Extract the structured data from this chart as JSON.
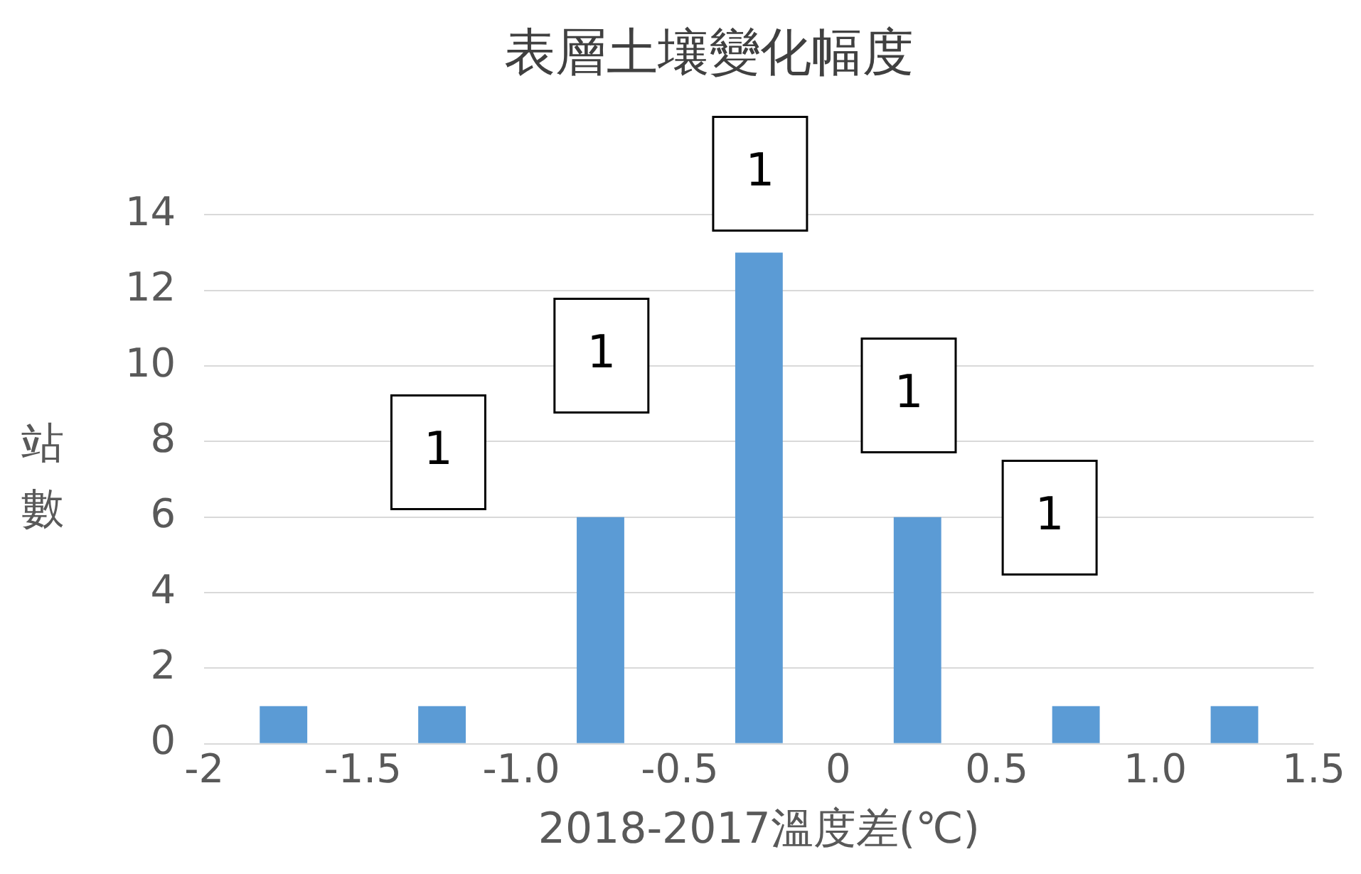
{
  "chart_data": {
    "type": "histogram",
    "title": "表層土壤變化幅度",
    "xlabel": "2018-2017溫度差(℃)",
    "ylabel": "站數",
    "bins": [
      -2,
      -1.5,
      -1,
      -0.5,
      0,
      0.5,
      1,
      1.5
    ],
    "values": [
      1,
      1,
      6,
      13,
      6,
      1,
      1
    ],
    "color": "#5b9bd5",
    "xlim": [
      -2,
      1.5
    ],
    "xticks": [
      -2,
      -1.5,
      {
        "value": -1,
        "label": "-1.0"
      },
      -0.5,
      0,
      0.5,
      {
        "value": 1,
        "label": "1.0"
      },
      1.5
    ],
    "ylim": [
      0,
      14
    ],
    "yticks": [
      0,
      2,
      4,
      6,
      8,
      10,
      12,
      14
    ],
    "grid": "y",
    "legend": false,
    "annotations": [
      "1",
      "1",
      "1",
      "1",
      "1"
    ]
  }
}
